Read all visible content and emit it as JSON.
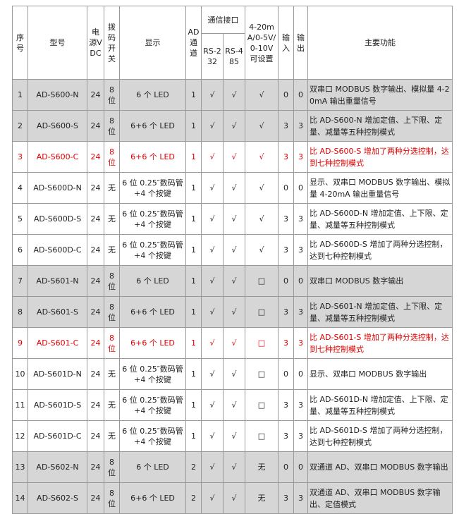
{
  "header": {
    "no": "序号",
    "model": "型号",
    "power": "电源VDC",
    "dip": "拨码开关",
    "display": "显示",
    "ad": "AD通道",
    "comm": "通信接口",
    "rs232": "RS-232",
    "rs485": "RS-485",
    "analog": "4-20mA/0-5V/0-10V可设置",
    "input": "输入",
    "output": "输出",
    "function": "主要功能"
  },
  "table": {
    "rows": [
      {
        "no": 1,
        "model": "AD-S600-N",
        "power": 24,
        "dip": "8位",
        "display": "6 个 LED",
        "ad": 1,
        "rs232": "√",
        "rs485": "√",
        "analog": "√",
        "input": 0,
        "output": 0,
        "function": "双串口 MODBUS 数字输出、模拟量 4-20mA 输出重量信号"
      },
      {
        "no": 2,
        "model": "AD-S600-S",
        "power": 24,
        "dip": "8位",
        "display": "6+6 个 LED",
        "ad": 1,
        "rs232": "√",
        "rs485": "√",
        "analog": "√",
        "input": 3,
        "output": 3,
        "function": "比 AD-S600-N 增加定值、上下限、定量、减量等五种控制模式"
      },
      {
        "no": 3,
        "model": "AD-S600-C",
        "power": 24,
        "dip": "8位",
        "display": "6+6 个 LED",
        "ad": 1,
        "rs232": "√",
        "rs485": "√",
        "analog": "√",
        "input": 3,
        "output": 3,
        "function": "比 AD-S600-S 增加了两种分选控制，达到七种控制模式"
      },
      {
        "no": 4,
        "model": "AD-S600D-N",
        "power": 24,
        "dip": "无",
        "display": "6 位 0.25″数码管+4 个按键",
        "ad": 1,
        "rs232": "√",
        "rs485": "√",
        "analog": "√",
        "input": 0,
        "output": 0,
        "function": "显示、双串口 MODBUS 数字输出、模拟量 4-20mA 输出重量信号"
      },
      {
        "no": 5,
        "model": "AD-S600D-S",
        "power": 24,
        "dip": "无",
        "display": "6 位 0.25″数码管+4 个按键",
        "ad": 1,
        "rs232": "√",
        "rs485": "√",
        "analog": "√",
        "input": 3,
        "output": 3,
        "function": "比 AD-S600D-N 增加定值、上下限、定量、减量等五种控制模式"
      },
      {
        "no": 6,
        "model": "AD-S600D-C",
        "power": 24,
        "dip": "无",
        "display": "6 位 0.25″数码管+4 个按键",
        "ad": 1,
        "rs232": "√",
        "rs485": "√",
        "analog": "√",
        "input": 3,
        "output": 3,
        "function": "比 AD-S600D-S 增加了两种分选控制，达到七种控制模式"
      },
      {
        "no": 7,
        "model": "AD-S601-N",
        "power": 24,
        "dip": "8位",
        "display": "6 个 LED",
        "ad": 1,
        "rs232": "√",
        "rs485": "√",
        "analog": "□",
        "input": 0,
        "output": 0,
        "function": "双串口 MODBUS 数字输出"
      },
      {
        "no": 8,
        "model": "AD-S601-S",
        "power": 24,
        "dip": "8位",
        "display": "6+6 个 LED",
        "ad": 1,
        "rs232": "√",
        "rs485": "√",
        "analog": "□",
        "input": 3,
        "output": 3,
        "function": "比 AD-S601-N 增加定值、上下限、定量、减量等五种控制模式"
      },
      {
        "no": 9,
        "model": "AD-S601-C",
        "power": 24,
        "dip": "8位",
        "display": "6+6 个 LED",
        "ad": 1,
        "rs232": "√",
        "rs485": "√",
        "analog": "□",
        "input": 3,
        "output": 3,
        "function": "比 AD-S601-S 增加了两种分选控制，达到七种控制模式"
      },
      {
        "no": 10,
        "model": "AD-S601D-N",
        "power": 24,
        "dip": "无",
        "display": "6 位 0.25″数码管+4 个按键",
        "ad": 1,
        "rs232": "√",
        "rs485": "√",
        "analog": "□",
        "input": 0,
        "output": 0,
        "function": "显示、双串口 MODBUS 数字输出"
      },
      {
        "no": 11,
        "model": "AD-S601D-S",
        "power": 24,
        "dip": "无",
        "display": "6 位 0.25″数码管+4 个按键",
        "ad": 1,
        "rs232": "√",
        "rs485": "√",
        "analog": "□",
        "input": 3,
        "output": 3,
        "function": "比 AD-S601D-N 增加定值、上下限、定量、减量等五种控制模式"
      },
      {
        "no": 12,
        "model": "AD-S601D-C",
        "power": 24,
        "dip": "无",
        "display": "6 位 0.25″数码管+4 个按键",
        "ad": 1,
        "rs232": "√",
        "rs485": "√",
        "analog": "□",
        "input": 3,
        "output": 3,
        "function": "比 AD-S601D-S 增加了两种分选控制，达到七种控制模式"
      },
      {
        "no": 13,
        "model": "AD-S602-N",
        "power": 24,
        "dip": "8位",
        "display": "6 个 LED",
        "ad": 2,
        "rs232": "√",
        "rs485": "√",
        "analog": "无",
        "input": 0,
        "output": 0,
        "function": "双通道 AD、双串口 MODBUS 数字输出"
      },
      {
        "no": 14,
        "model": "AD-S602-S",
        "power": 24,
        "dip": "8位",
        "display": "6+6 个 LED",
        "ad": 2,
        "rs232": "√",
        "rs485": "√",
        "analog": "无",
        "input": 3,
        "output": 3,
        "function": "双通道 AD、双串口 MODBUS 数字输出、定值模式"
      }
    ]
  }
}
